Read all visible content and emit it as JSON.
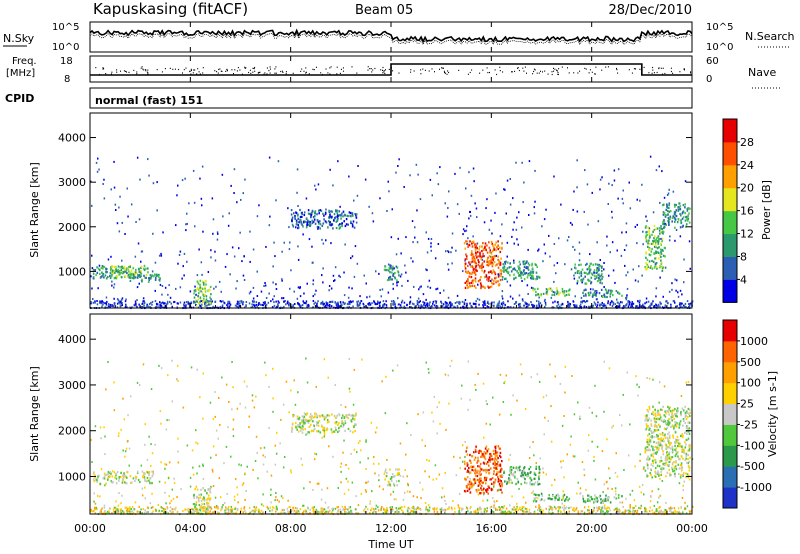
{
  "header": {
    "station": "Kapuskasing (fitACF)",
    "beam": "Beam 05",
    "date": "28/Dec/2010"
  },
  "noise_panel": {
    "left_label": "N.Sky",
    "right_label": "N.Search",
    "tick_top": "10^5",
    "tick_bottom": "10^0"
  },
  "freq_panel": {
    "left_label": "Freq.",
    "left_unit": "[MHz]",
    "right_label": "Nave",
    "freq_ticks": [
      "18",
      "8"
    ],
    "nave_ticks": [
      "60",
      "0"
    ]
  },
  "cpid": {
    "label": "CPID",
    "mode": "normal (fast) 151"
  },
  "chart_data": [
    {
      "type": "heatmap",
      "name": "power",
      "ylabel": "Slant Range [km]",
      "yticks": [
        "4000",
        "3000",
        "2000",
        "1000"
      ],
      "ylim": [
        180,
        4550
      ],
      "colorbar": {
        "label": "Power [dB]",
        "ticks": [
          "28",
          "24",
          "20",
          "16",
          "12",
          "8",
          "4"
        ],
        "colors": [
          "#0000e6",
          "#2a5fb4",
          "#2a9a6e",
          "#46c846",
          "#e6e61e",
          "#ffa000",
          "#ff5000",
          "#e60000"
        ]
      },
      "regions": [
        {
          "x": [
            0.1,
            1.8
          ],
          "y": [
            860,
            1130
          ],
          "level": 2
        },
        {
          "x": [
            0.8,
            2.3
          ],
          "y": [
            880,
            1150
          ],
          "level": 3
        },
        {
          "x": [
            1.5,
            2.8
          ],
          "y": [
            780,
            960
          ],
          "level": 2
        },
        {
          "x": [
            4.1,
            4.8
          ],
          "y": [
            250,
            820
          ],
          "level": 3
        },
        {
          "x": [
            8.0,
            10.6
          ],
          "y": [
            1980,
            2400
          ],
          "level": 1
        },
        {
          "x": [
            11.7,
            12.3
          ],
          "y": [
            820,
            1180
          ],
          "level": 2
        },
        {
          "x": [
            14.9,
            16.4
          ],
          "y": [
            650,
            1700
          ],
          "level": 6
        },
        {
          "x": [
            16.4,
            17.9
          ],
          "y": [
            850,
            1250
          ],
          "level": 2
        },
        {
          "x": [
            17.6,
            19.1
          ],
          "y": [
            480,
            650
          ],
          "level": 3
        },
        {
          "x": [
            19.3,
            20.4
          ],
          "y": [
            750,
            1200
          ],
          "level": 2
        },
        {
          "x": [
            19.6,
            21.2
          ],
          "y": [
            450,
            620
          ],
          "level": 2
        },
        {
          "x": [
            22.1,
            22.9
          ],
          "y": [
            1000,
            2050
          ],
          "level": 3
        },
        {
          "x": [
            22.8,
            23.9
          ],
          "y": [
            2000,
            2550
          ],
          "level": 2
        }
      ]
    },
    {
      "type": "heatmap",
      "name": "velocity",
      "xlabel": "Time UT",
      "ylabel": "Slant Range [km]",
      "xticks": [
        "00:00",
        "04:00",
        "08:00",
        "12:00",
        "16:00",
        "20:00",
        "00:00"
      ],
      "yticks": [
        "4000",
        "3000",
        "2000",
        "1000"
      ],
      "ylim": [
        180,
        4550
      ],
      "colorbar": {
        "label": "Velocity [m s-1]",
        "ticks": [
          "1000",
          "500",
          "100",
          "25",
          "-25",
          "-100",
          "-500",
          "-1000"
        ],
        "colors": [
          "#1e32c8",
          "#2a6eb4",
          "#2a9a4a",
          "#50c83c",
          "#c8c8c8",
          "#ffd000",
          "#ffa000",
          "#ff6400",
          "#e60000"
        ]
      },
      "regions": [
        {
          "x": [
            0.1,
            2.5
          ],
          "y": [
            860,
            1130
          ],
          "level": 4
        },
        {
          "x": [
            4.1,
            4.8
          ],
          "y": [
            250,
            820
          ],
          "level": 4
        },
        {
          "x": [
            8.0,
            10.6
          ],
          "y": [
            1980,
            2400
          ],
          "level": 4
        },
        {
          "x": [
            11.7,
            12.3
          ],
          "y": [
            820,
            1180
          ],
          "level": 4
        },
        {
          "x": [
            14.9,
            16.4
          ],
          "y": [
            650,
            1700
          ],
          "level": 7
        },
        {
          "x": [
            16.4,
            17.9
          ],
          "y": [
            850,
            1250
          ],
          "level": 3
        },
        {
          "x": [
            17.6,
            19.1
          ],
          "y": [
            480,
            650
          ],
          "level": 3
        },
        {
          "x": [
            19.6,
            21.2
          ],
          "y": [
            450,
            620
          ],
          "level": 3
        },
        {
          "x": [
            22.1,
            23.9
          ],
          "y": [
            1000,
            2550
          ],
          "level": 4
        }
      ]
    }
  ]
}
